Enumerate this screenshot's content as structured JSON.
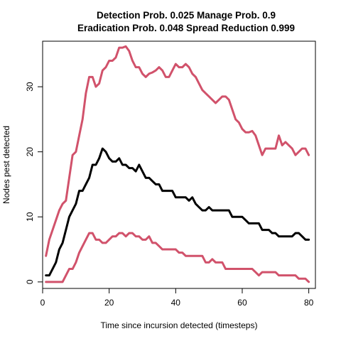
{
  "chart_data": {
    "type": "line",
    "title": "Detection Prob. 0.025 Manage Prob. 0.9",
    "subtitle": "Eradication Prob. 0.048 Spread Reduction 0.999",
    "xlabel": "Time since incursion detected (timesteps)",
    "ylabel": "Nodes pest detected",
    "xlim": [
      0,
      82
    ],
    "ylim": [
      -1,
      37
    ],
    "xticks": [
      0,
      20,
      40,
      60,
      80
    ],
    "yticks": [
      0,
      10,
      20,
      30
    ],
    "grid": false,
    "legend": "none",
    "series": [
      {
        "role": "upper",
        "color": "#d1526b",
        "x": [
          1,
          2,
          3,
          4,
          5,
          6,
          7,
          8,
          9,
          10,
          11,
          12,
          13,
          14,
          15,
          16,
          17,
          18,
          19,
          20,
          21,
          22,
          23,
          24,
          25,
          26,
          27,
          28,
          29,
          30,
          31,
          32,
          33,
          34,
          35,
          36,
          37,
          38,
          39,
          40,
          41,
          42,
          43,
          44,
          45,
          46,
          47,
          48,
          49,
          50,
          51,
          52,
          53,
          54,
          55,
          56,
          57,
          58,
          59,
          60,
          61,
          62,
          63,
          64,
          65,
          66,
          67,
          68,
          69,
          70,
          71,
          72,
          73,
          74,
          75,
          76,
          77,
          78,
          79,
          80
        ],
        "values": [
          4,
          6.5,
          8,
          9.5,
          11,
          12,
          12.5,
          16,
          19.5,
          20,
          22.5,
          25,
          29,
          31.5,
          31.5,
          30,
          30.5,
          32.5,
          33,
          34,
          34,
          34.5,
          36,
          36,
          36.2,
          35.5,
          34,
          33,
          33,
          32,
          31.5,
          32,
          32.2,
          32.5,
          33,
          32.5,
          31.5,
          31.5,
          32.5,
          33.5,
          33,
          33,
          33.5,
          33,
          32,
          31.5,
          30.5,
          29.5,
          29,
          28.5,
          28,
          27.5,
          28,
          28.5,
          28.5,
          28,
          26.5,
          25,
          24.5,
          23.5,
          23,
          23,
          23.2,
          22.5,
          21,
          19.5,
          20.5,
          20.5,
          20.5,
          20.5,
          22.5,
          21,
          21.5,
          21,
          20.5,
          19.5,
          20,
          20.5,
          20.5,
          19.5
        ]
      },
      {
        "role": "median",
        "color": "#000000",
        "x": [
          1,
          2,
          3,
          4,
          5,
          6,
          7,
          8,
          9,
          10,
          11,
          12,
          13,
          14,
          15,
          16,
          17,
          18,
          19,
          20,
          21,
          22,
          23,
          24,
          25,
          26,
          27,
          28,
          29,
          30,
          31,
          32,
          33,
          34,
          35,
          36,
          37,
          38,
          39,
          40,
          41,
          42,
          43,
          44,
          45,
          46,
          47,
          48,
          49,
          50,
          51,
          52,
          53,
          54,
          55,
          56,
          57,
          58,
          59,
          60,
          61,
          62,
          63,
          64,
          65,
          66,
          67,
          68,
          69,
          70,
          71,
          72,
          73,
          74,
          75,
          76,
          77,
          78,
          79,
          80
        ],
        "values": [
          1,
          1,
          2,
          3,
          5,
          6,
          8,
          10,
          11,
          12,
          14,
          14,
          15,
          16,
          18,
          18,
          19,
          20.5,
          20,
          19,
          18.5,
          18.5,
          19,
          18,
          18,
          17.5,
          17.5,
          17,
          18,
          17,
          16,
          16,
          15.5,
          15,
          15,
          14,
          14,
          14,
          14,
          13,
          13,
          13,
          13,
          12.5,
          13,
          12,
          11.5,
          11,
          11,
          11.5,
          11,
          11,
          11,
          11,
          11,
          11,
          10,
          10,
          10,
          10,
          9.5,
          9,
          9,
          9,
          9,
          8,
          8,
          8,
          7.5,
          7.5,
          7,
          7,
          7,
          7,
          7,
          7.5,
          7.5,
          7,
          6.5,
          6.5
        ]
      },
      {
        "role": "lower",
        "color": "#d1526b",
        "x": [
          1,
          2,
          3,
          4,
          5,
          6,
          7,
          8,
          9,
          10,
          11,
          12,
          13,
          14,
          15,
          16,
          17,
          18,
          19,
          20,
          21,
          22,
          23,
          24,
          25,
          26,
          27,
          28,
          29,
          30,
          31,
          32,
          33,
          34,
          35,
          36,
          37,
          38,
          39,
          40,
          41,
          42,
          43,
          44,
          45,
          46,
          47,
          48,
          49,
          50,
          51,
          52,
          53,
          54,
          55,
          56,
          57,
          58,
          59,
          60,
          61,
          62,
          63,
          64,
          65,
          66,
          67,
          68,
          69,
          70,
          71,
          72,
          73,
          74,
          75,
          76,
          77,
          78,
          79,
          80
        ],
        "values": [
          0,
          0,
          0,
          0,
          0,
          0,
          1,
          2,
          2,
          3,
          4.5,
          5.5,
          6.5,
          7.5,
          7.5,
          6.5,
          6.5,
          6,
          6,
          6.5,
          7,
          7,
          7.5,
          7.5,
          7,
          7.5,
          7.5,
          7,
          7,
          6.5,
          6.5,
          7,
          6,
          6,
          5.5,
          5,
          5,
          5,
          5,
          5,
          4.5,
          4.5,
          4,
          4,
          4,
          4,
          4,
          4,
          3,
          3,
          3.5,
          3,
          3,
          3,
          2,
          2,
          2,
          2,
          2,
          2,
          2,
          2,
          2,
          1.5,
          1,
          1.5,
          1.5,
          1.5,
          1.5,
          1.5,
          1,
          1,
          1,
          1,
          1,
          1,
          0.5,
          0.5,
          0.5,
          0
        ]
      }
    ]
  }
}
